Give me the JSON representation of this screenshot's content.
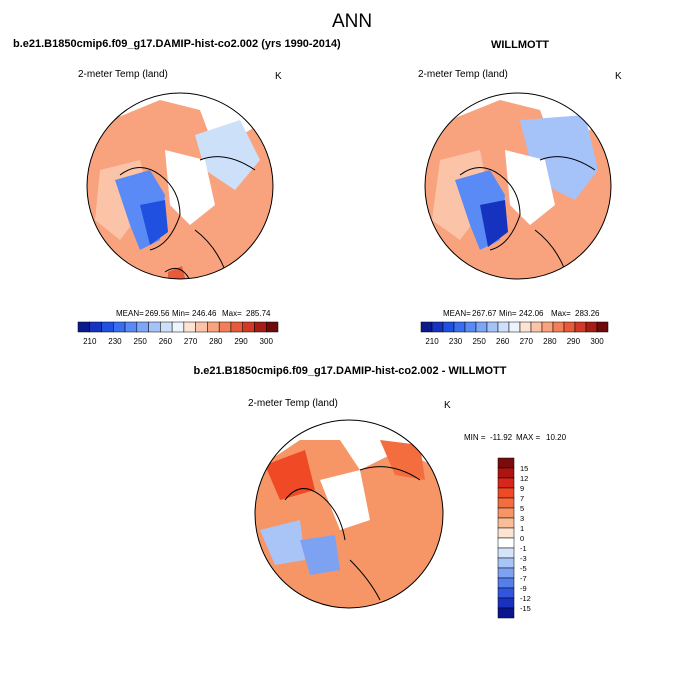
{
  "title": "ANN",
  "chart_data": [
    {
      "type": "heatmap",
      "projection": "north-polar-stereographic",
      "title": "b.e21.B1850cmip6.f09_g17.DAMIP-hist-co2.002 (yrs 1990-2014)",
      "variable": "2-meter Temp (land)",
      "units": "K",
      "stats": {
        "mean_label": "MEAN=",
        "mean": "269.56",
        "min_label": "Min=",
        "min": "246.46",
        "max_label": "Max=",
        "max": "285.74"
      },
      "colorbar": {
        "orientation": "horizontal",
        "levels": [
          205,
          210,
          215,
          220,
          225,
          230,
          235,
          240,
          245,
          250,
          255,
          260,
          265,
          270,
          275,
          280,
          285,
          290,
          295,
          300
        ],
        "tick_labels": [
          "210",
          "230",
          "250",
          "260",
          "270",
          "280",
          "290",
          "300"
        ],
        "colors": [
          "#0b1a8c",
          "#1633c0",
          "#2050e0",
          "#3a6ef0",
          "#5a8af5",
          "#7ea6f7",
          "#a5c3f8",
          "#cde0fa",
          "#eef4fd",
          "#fde3d4",
          "#fbc4a8",
          "#f8a27e",
          "#f27f58",
          "#e75a3a",
          "#d03a26",
          "#a61d16",
          "#6e0a0a"
        ]
      }
    },
    {
      "type": "heatmap",
      "projection": "north-polar-stereographic",
      "title": "WILLMOTT",
      "variable": "2-meter Temp (land)",
      "units": "K",
      "stats": {
        "mean_label": "MEAN=",
        "mean": "267.67",
        "min_label": "Min=",
        "min": "242.06",
        "max_label": "Max=",
        "max": "283.26"
      },
      "colorbar": {
        "orientation": "horizontal",
        "levels": [
          205,
          210,
          215,
          220,
          225,
          230,
          235,
          240,
          245,
          250,
          255,
          260,
          265,
          270,
          275,
          280,
          285,
          290,
          295,
          300
        ],
        "tick_labels": [
          "210",
          "230",
          "250",
          "260",
          "270",
          "280",
          "290",
          "300"
        ],
        "colors": [
          "#0b1a8c",
          "#1633c0",
          "#2050e0",
          "#3a6ef0",
          "#5a8af5",
          "#7ea6f7",
          "#a5c3f8",
          "#cde0fa",
          "#eef4fd",
          "#fde3d4",
          "#fbc4a8",
          "#f8a27e",
          "#f27f58",
          "#e75a3a",
          "#d03a26",
          "#a61d16",
          "#6e0a0a"
        ]
      }
    },
    {
      "type": "heatmap",
      "projection": "north-polar-stereographic",
      "title": "b.e21.B1850cmip6.f09_g17.DAMIP-hist-co2.002 - WILLMOTT",
      "variable": "2-meter Temp (land)",
      "units": "K",
      "stats": {
        "min_label": "MIN =",
        "min": "-11.92",
        "max_label": "MAX =",
        "max": "10.20"
      },
      "colorbar": {
        "orientation": "vertical",
        "levels": [
          15,
          12,
          9,
          7,
          5,
          3,
          1,
          0,
          -1,
          -3,
          -5,
          -7,
          -9,
          -12,
          -15
        ],
        "tick_labels": [
          "15",
          "12",
          "9",
          "7",
          "5",
          "3",
          "1",
          "0",
          "-1",
          "-3",
          "-5",
          "-7",
          "-9",
          "-12",
          "-15"
        ],
        "colors": [
          "#7a0c0c",
          "#b0140f",
          "#d8261a",
          "#ef4a25",
          "#f46d3f",
          "#f69566",
          "#f9bd99",
          "#fde3d1",
          "#ffffff",
          "#d6e4fa",
          "#a9c4f6",
          "#7ea2f2",
          "#557ee9",
          "#2f56dd",
          "#1a30c0",
          "#0b1490"
        ]
      }
    }
  ]
}
